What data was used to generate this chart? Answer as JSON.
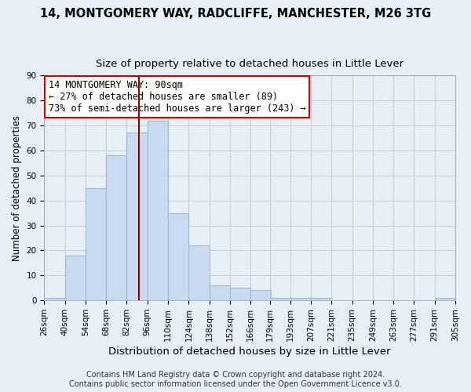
{
  "title1": "14, MONTGOMERY WAY, RADCLIFFE, MANCHESTER, M26 3TG",
  "title2": "Size of property relative to detached houses in Little Lever",
  "xlabel": "Distribution of detached houses by size in Little Lever",
  "ylabel": "Number of detached properties",
  "bin_edges": [
    26,
    40,
    54,
    68,
    82,
    96,
    110,
    124,
    138,
    152,
    166,
    179,
    193,
    207,
    221,
    235,
    249,
    263,
    277,
    291,
    305
  ],
  "bar_heights": [
    1,
    18,
    45,
    58,
    67,
    72,
    35,
    22,
    6,
    5,
    4,
    1,
    1,
    1,
    0,
    0,
    0,
    0,
    0,
    1
  ],
  "bar_color": "#c9d9ef",
  "bar_edgecolor": "#9abcd6",
  "grid_color": "#c8d0dc",
  "bg_color": "#e8eef5",
  "vline_x": 90,
  "vline_color": "#8b0000",
  "annotation_title": "14 MONTGOMERY WAY: 90sqm",
  "annotation_line1": "← 27% of detached houses are smaller (89)",
  "annotation_line2": "73% of semi-detached houses are larger (243) →",
  "annotation_box_edgecolor": "#cc0000",
  "annotation_box_facecolor": "white",
  "ylim": [
    0,
    90
  ],
  "yticks": [
    0,
    10,
    20,
    30,
    40,
    50,
    60,
    70,
    80,
    90
  ],
  "footer1": "Contains HM Land Registry data © Crown copyright and database right 2024.",
  "footer2": "Contains public sector information licensed under the Open Government Licence v3.0.",
  "title1_fontsize": 10.5,
  "title2_fontsize": 9.5,
  "xlabel_fontsize": 9.5,
  "ylabel_fontsize": 8.5,
  "tick_fontsize": 7.5,
  "annotation_fontsize": 8.5,
  "footer_fontsize": 7
}
